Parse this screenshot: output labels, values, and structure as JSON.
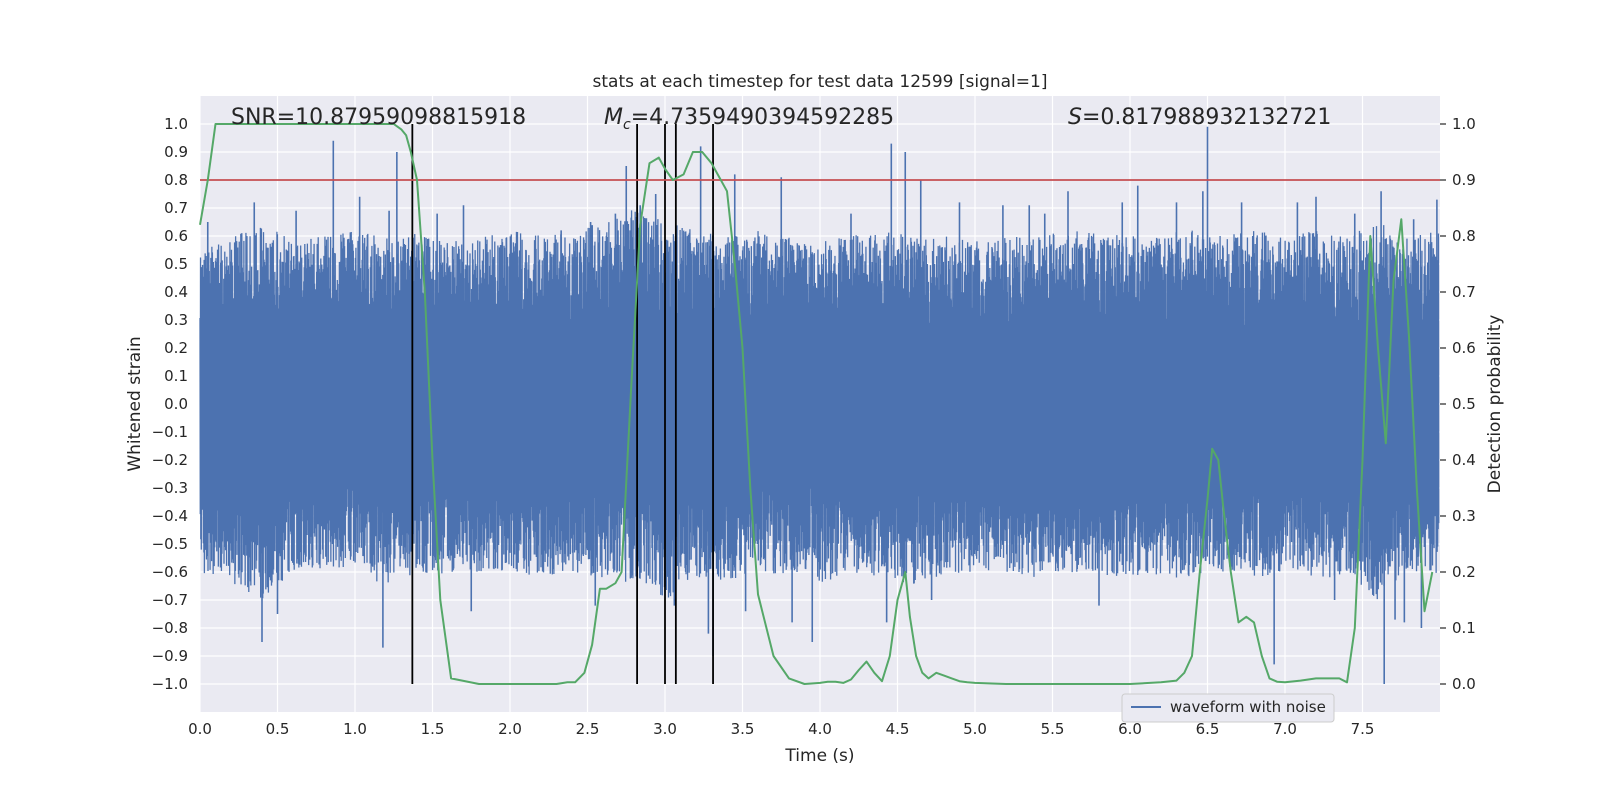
{
  "chart_data": {
    "type": "line",
    "title": "stats at each timestep for test data 12599 [signal=1]",
    "xlabel": "Time (s)",
    "ylabel": "Whitened strain",
    "y2label": "Detection probability",
    "xlim": [
      0.0,
      8.0
    ],
    "ylim": [
      -1.1,
      1.1
    ],
    "y2lim": [
      -0.05,
      1.05
    ],
    "xticks": [
      "0.0",
      "0.5",
      "1.0",
      "1.5",
      "2.0",
      "2.5",
      "3.0",
      "3.5",
      "4.0",
      "4.5",
      "5.0",
      "5.5",
      "6.0",
      "6.5",
      "7.0",
      "7.5"
    ],
    "xtick_values": [
      0.0,
      0.5,
      1.0,
      1.5,
      2.0,
      2.5,
      3.0,
      3.5,
      4.0,
      4.5,
      5.0,
      5.5,
      6.0,
      6.5,
      7.0,
      7.5
    ],
    "yticks": [
      "1.0",
      "0.9",
      "0.8",
      "0.7",
      "0.6",
      "0.5",
      "0.4",
      "0.3",
      "0.2",
      "0.1",
      "0.0",
      "−0.1",
      "−0.2",
      "−0.3",
      "−0.4",
      "−0.5",
      "−0.6",
      "−0.7",
      "−0.8",
      "−0.9",
      "−1.0"
    ],
    "ytick_values": [
      1.0,
      0.9,
      0.8,
      0.7,
      0.6,
      0.5,
      0.4,
      0.3,
      0.2,
      0.1,
      0.0,
      -0.1,
      -0.2,
      -0.3,
      -0.4,
      -0.5,
      -0.6,
      -0.7,
      -0.8,
      -0.9,
      -1.0
    ],
    "y2ticks": [
      "1.0",
      "0.9",
      "0.8",
      "0.7",
      "0.6",
      "0.5",
      "0.4",
      "0.3",
      "0.2",
      "0.1",
      "0.0"
    ],
    "y2tick_values": [
      1.0,
      0.9,
      0.8,
      0.7,
      0.6,
      0.5,
      0.4,
      0.3,
      0.2,
      0.1,
      0.0
    ],
    "grid": true,
    "legend": {
      "position": "lower-right",
      "entries": [
        "waveform with noise"
      ]
    },
    "annotations": {
      "snr": "SNR=10.87959098815918",
      "mc_symbol": "M",
      "mc_sub": "c",
      "mc_value": "=4.7359490394592285",
      "s_symbol": "S",
      "s_value": "=0.817988932132721"
    },
    "threshold_line": {
      "axis": "y2",
      "value": 0.9,
      "color": "#c44e52"
    },
    "vertical_lines": {
      "x": [
        1.37,
        2.82,
        3.0,
        3.07,
        3.31
      ],
      "color": "#000000"
    },
    "series": [
      {
        "name": "waveform with noise",
        "axis": "y",
        "color": "#4c72b0",
        "envelope_x": [
          0.0,
          0.2,
          0.4,
          0.6,
          0.8,
          1.0,
          1.2,
          1.4,
          1.6,
          1.8,
          2.0,
          2.2,
          2.4,
          2.6,
          2.8,
          3.0,
          3.2,
          3.4,
          3.6,
          3.8,
          4.0,
          4.2,
          4.4,
          4.6,
          4.8,
          5.0,
          5.2,
          5.4,
          5.6,
          6.0,
          6.4,
          6.6,
          6.8,
          7.0,
          7.2,
          7.4,
          7.6,
          7.8,
          8.0
        ],
        "upper": [
          0.55,
          0.6,
          0.65,
          0.58,
          0.6,
          0.62,
          0.6,
          0.62,
          0.58,
          0.6,
          0.62,
          0.6,
          0.62,
          0.65,
          0.7,
          0.65,
          0.62,
          0.6,
          0.62,
          0.6,
          0.58,
          0.6,
          0.62,
          0.6,
          0.6,
          0.58,
          0.6,
          0.6,
          0.62,
          0.6,
          0.62,
          0.6,
          0.62,
          0.6,
          0.62,
          0.6,
          0.65,
          0.6,
          0.62
        ],
        "lower": [
          -0.6,
          -0.65,
          -0.7,
          -0.6,
          -0.62,
          -0.6,
          -0.65,
          -0.6,
          -0.62,
          -0.6,
          -0.6,
          -0.62,
          -0.6,
          -0.62,
          -0.65,
          -0.7,
          -0.62,
          -0.65,
          -0.6,
          -0.62,
          -0.65,
          -0.6,
          -0.62,
          -0.65,
          -0.62,
          -0.6,
          -0.6,
          -0.62,
          -0.6,
          -0.62,
          -0.62,
          -0.6,
          -0.62,
          -0.6,
          -0.62,
          -0.62,
          -0.7,
          -0.6,
          -0.62
        ],
        "spikes": [
          [
            0.05,
            0.65
          ],
          [
            0.35,
            0.72
          ],
          [
            0.4,
            -0.85
          ],
          [
            0.5,
            -0.75
          ],
          [
            0.62,
            0.69
          ],
          [
            0.86,
            0.94
          ],
          [
            1.03,
            0.74
          ],
          [
            1.18,
            -0.87
          ],
          [
            1.22,
            0.69
          ],
          [
            1.27,
            0.9
          ],
          [
            1.53,
            0.68
          ],
          [
            1.7,
            0.71
          ],
          [
            1.75,
            -0.74
          ],
          [
            2.33,
            0.62
          ],
          [
            2.52,
            0.65
          ],
          [
            2.55,
            -0.72
          ],
          [
            2.68,
            0.68
          ],
          [
            2.75,
            0.85
          ],
          [
            2.84,
            0.71
          ],
          [
            2.94,
            0.75
          ],
          [
            3.06,
            -0.72
          ],
          [
            3.23,
            0.92
          ],
          [
            3.28,
            -0.82
          ],
          [
            3.31,
            -0.9
          ],
          [
            3.45,
            0.82
          ],
          [
            3.52,
            -0.74
          ],
          [
            3.75,
            0.81
          ],
          [
            3.82,
            -0.78
          ],
          [
            3.95,
            -0.85
          ],
          [
            4.2,
            0.68
          ],
          [
            4.43,
            -0.78
          ],
          [
            4.46,
            0.93
          ],
          [
            4.55,
            0.9
          ],
          [
            4.65,
            0.8
          ],
          [
            4.72,
            -0.7
          ],
          [
            4.9,
            0.72
          ],
          [
            5.18,
            0.71
          ],
          [
            5.35,
            0.71
          ],
          [
            5.45,
            0.68
          ],
          [
            5.6,
            0.76
          ],
          [
            5.8,
            -0.72
          ],
          [
            5.95,
            0.72
          ],
          [
            6.05,
            0.78
          ],
          [
            6.3,
            0.72
          ],
          [
            6.47,
            0.76
          ],
          [
            6.5,
            0.99
          ],
          [
            6.72,
            0.72
          ],
          [
            6.93,
            -0.93
          ],
          [
            7.08,
            0.72
          ],
          [
            7.2,
            0.74
          ],
          [
            7.32,
            -0.7
          ],
          [
            7.45,
            0.68
          ],
          [
            7.62,
            0.76
          ],
          [
            7.64,
            -1.0
          ],
          [
            7.71,
            -0.77
          ],
          [
            7.77,
            -0.78
          ],
          [
            7.83,
            0.66
          ],
          [
            7.88,
            -0.8
          ],
          [
            7.98,
            0.73
          ]
        ]
      },
      {
        "name": "",
        "axis": "y2",
        "color": "#55a868",
        "x": [
          0.0,
          0.05,
          0.1,
          0.2,
          0.3,
          0.5,
          0.8,
          1.0,
          1.2,
          1.25,
          1.3,
          1.33,
          1.36,
          1.4,
          1.45,
          1.5,
          1.55,
          1.62,
          1.8,
          2.0,
          2.1,
          2.2,
          2.3,
          2.37,
          2.42,
          2.48,
          2.53,
          2.58,
          2.62,
          2.68,
          2.72,
          2.78,
          2.84,
          2.9,
          2.96,
          3.0,
          3.05,
          3.12,
          3.18,
          3.24,
          3.3,
          3.34,
          3.4,
          3.45,
          3.5,
          3.55,
          3.6,
          3.7,
          3.8,
          3.9,
          4.0,
          4.05,
          4.1,
          4.15,
          4.2,
          4.25,
          4.3,
          4.35,
          4.4,
          4.45,
          4.5,
          4.55,
          4.58,
          4.62,
          4.66,
          4.7,
          4.75,
          4.8,
          4.85,
          4.9,
          4.95,
          5.0,
          5.2,
          5.5,
          6.0,
          6.2,
          6.3,
          6.35,
          6.4,
          6.45,
          6.5,
          6.53,
          6.57,
          6.6,
          6.65,
          6.7,
          6.75,
          6.8,
          6.85,
          6.9,
          6.95,
          7.0,
          7.1,
          7.2,
          7.3,
          7.35,
          7.4,
          7.45,
          7.5,
          7.55,
          7.6,
          7.65,
          7.7,
          7.75,
          7.8,
          7.85,
          7.9,
          7.95
        ],
        "y": [
          0.82,
          0.9,
          1.0,
          1.0,
          1.0,
          1.0,
          1.0,
          1.0,
          1.0,
          1.0,
          0.99,
          0.98,
          0.95,
          0.9,
          0.7,
          0.4,
          0.15,
          0.01,
          0.0,
          0.0,
          0.0,
          0.0,
          0.0,
          0.003,
          0.003,
          0.02,
          0.07,
          0.17,
          0.17,
          0.18,
          0.2,
          0.52,
          0.82,
          0.93,
          0.94,
          0.92,
          0.9,
          0.91,
          0.95,
          0.95,
          0.93,
          0.91,
          0.88,
          0.75,
          0.6,
          0.35,
          0.16,
          0.05,
          0.01,
          0.0,
          0.002,
          0.004,
          0.004,
          0.002,
          0.008,
          0.025,
          0.04,
          0.02,
          0.005,
          0.05,
          0.15,
          0.2,
          0.12,
          0.05,
          0.02,
          0.01,
          0.02,
          0.015,
          0.01,
          0.005,
          0.003,
          0.002,
          0.0,
          0.0,
          0.0,
          0.003,
          0.006,
          0.02,
          0.05,
          0.2,
          0.33,
          0.42,
          0.4,
          0.32,
          0.2,
          0.11,
          0.12,
          0.11,
          0.05,
          0.01,
          0.004,
          0.003,
          0.006,
          0.01,
          0.01,
          0.01,
          0.003,
          0.1,
          0.4,
          0.8,
          0.6,
          0.43,
          0.72,
          0.83,
          0.62,
          0.35,
          0.13,
          0.2
        ]
      }
    ]
  }
}
